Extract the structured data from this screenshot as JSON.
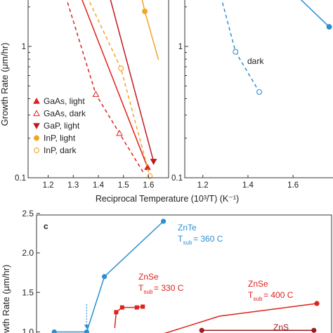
{
  "shared_xlabel": "Reciprocal Temperature (10³/T) (K⁻¹)",
  "chart_data": [
    {
      "id": "top-left",
      "type": "line",
      "ylabel": "Growth Rate (μm/hr)",
      "yscale": "log",
      "xlim": [
        1.12,
        1.68
      ],
      "ylim": [
        0.1,
        2.4
      ],
      "xticks": [
        1.2,
        1.3,
        1.4,
        1.5,
        1.6
      ],
      "xtick_labels": [
        "1.2",
        "1.3",
        "1.4",
        "1.5",
        "1.6"
      ],
      "yticks": [
        0.1,
        1
      ],
      "ytick_labels": [
        "0.1",
        "1"
      ],
      "legend_position": "bottom-left",
      "series": [
        {
          "name": "GaAs, light",
          "marker": "triangle-filled",
          "color": "#e0201b",
          "dash": "0",
          "x": [
            1.33,
            1.596
          ],
          "y": [
            2.4,
            0.12
          ]
        },
        {
          "name": "GaAs, dark",
          "marker": "triangle-open",
          "color": "#e0201b",
          "dash": "5,4",
          "x": [
            1.27,
            1.39,
            1.484,
            1.58
          ],
          "y": [
            2.4,
            0.432,
            0.218,
            0.109
          ],
          "marker_x": [
            1.39,
            1.484
          ]
        },
        {
          "name": "GaP, light",
          "marker": "triangle-down",
          "color": "#c0191f",
          "dash": "0",
          "x": [
            1.445,
            1.62
          ],
          "y": [
            2.4,
            0.133
          ]
        },
        {
          "name": "InP, light",
          "marker": "circle-filled",
          "color": "#f4a323",
          "dash": "0",
          "x": [
            1.572,
            1.585,
            1.64
          ],
          "y": [
            2.4,
            1.85,
            0.79
          ],
          "marker_x": [
            1.585
          ]
        },
        {
          "name": "InP, dark",
          "marker": "circle-open",
          "color": "#f4a323",
          "dash": "5,4",
          "x": [
            1.355,
            1.49,
            1.605
          ],
          "y": [
            2.4,
            0.68,
            0.103
          ],
          "marker_x": [
            1.49,
            1.605
          ]
        }
      ]
    },
    {
      "id": "top-right",
      "type": "line",
      "yscale": "log",
      "xlim": [
        1.12,
        1.78
      ],
      "ylim": [
        0.1,
        2.4
      ],
      "xticks": [
        1.2,
        1.4,
        1.6
      ],
      "xtick_labels": [
        "1.2",
        "1.4",
        "1.6"
      ],
      "yticks": [
        0.1,
        1
      ],
      "ytick_labels": [
        "0.1",
        "1"
      ],
      "series": [
        {
          "name": "light",
          "marker": "circle-filled",
          "color": "#2b8fcf",
          "dash": "0",
          "x": [
            1.62,
            1.76
          ],
          "y": [
            2.4,
            1.41
          ],
          "marker_x": [
            1.76
          ]
        },
        {
          "name": "dark",
          "marker": "circle-open",
          "color": "#2b8fcf",
          "dash": "5,4",
          "x": [
            1.28,
            1.345,
            1.45
          ],
          "y": [
            2.4,
            0.91,
            0.45
          ],
          "marker_x": [
            1.345,
            1.45
          ]
        }
      ],
      "annotations": [
        {
          "text": "dark"
        }
      ]
    },
    {
      "id": "bottom",
      "type": "line",
      "panel_label": "c",
      "ylabel": "Growth Rate (μm/hr)",
      "ylim": [
        0.88,
        2.48
      ],
      "yticks": [
        1.0,
        1.5,
        2.0,
        2.5
      ],
      "ytick_labels": [
        "1.0",
        "1.5",
        "2.0",
        "2.5"
      ],
      "series": [
        {
          "name": "ZnTe",
          "color": "#2b8fcf",
          "x": [
            0.06,
            0.17,
            0.23,
            0.43
          ],
          "y": [
            1.0,
            1.0,
            1.7,
            2.4
          ]
        },
        {
          "name": "ZnSe",
          "color": "#e0201b",
          "x": [
            0.265,
            0.27,
            0.29,
            0.34,
            0.36
          ],
          "y": [
            1.05,
            1.25,
            1.31,
            1.31,
            1.32
          ]
        },
        {
          "name": "ZnSe",
          "color": "#e0201b",
          "x": [
            0.39,
            0.62,
            0.95
          ],
          "y": [
            0.93,
            1.2,
            1.36
          ]
        },
        {
          "name": "ZnS",
          "color": "#9e1b22",
          "x": [
            0.56,
            0.79,
            0.94
          ],
          "y": [
            1.02,
            1.02,
            1.02
          ]
        }
      ],
      "annotations": [
        {
          "text": "ZnTe",
          "sub": "T",
          "subscript": "sub",
          "value": "= 360 C"
        },
        {
          "text": "ZnSe",
          "sub": "T",
          "subscript": "sub",
          "value": "= 330 C"
        },
        {
          "text": "ZnSe",
          "sub": "T",
          "subscript": "sub",
          "value": "= 400 C"
        },
        {
          "text": "ZnS"
        }
      ],
      "arrow": {
        "x": 0.17,
        "y_from": 1.35,
        "y_to": 1.02,
        "color": "#2b8fcf"
      }
    }
  ]
}
